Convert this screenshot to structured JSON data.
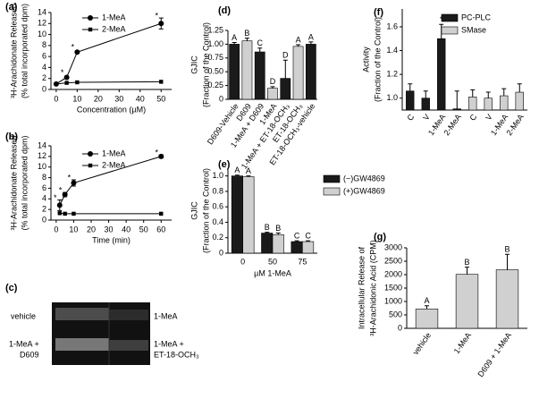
{
  "chart_data": [
    {
      "type": "line",
      "tag": "(a)",
      "ylabel": [
        "³H-Arachidonate Released",
        "(% total incorporated dpm)"
      ],
      "xlabel": "Concentration (µM)",
      "xlim": [
        -2.5,
        55
      ],
      "xticks": [
        0,
        10,
        20,
        30,
        40,
        50
      ],
      "ylim": [
        0,
        14
      ],
      "yticks": [
        0,
        2,
        4,
        6,
        8,
        10,
        12,
        14
      ],
      "legend": "upper center",
      "series": [
        {
          "name": "1-MeA",
          "marker": "circle",
          "color": "#000000",
          "x": [
            0,
            5,
            10,
            50
          ],
          "values": [
            1.0,
            2.2,
            6.8,
            12.0
          ],
          "errors": [
            null,
            null,
            null,
            1.0
          ],
          "point_labels": [
            null,
            "*",
            "*",
            "*"
          ]
        },
        {
          "name": "2-MeA",
          "marker": "square",
          "color": "#000000",
          "x": [
            0,
            5,
            10,
            50
          ],
          "values": [
            1.0,
            1.2,
            1.3,
            1.4
          ]
        }
      ]
    },
    {
      "type": "line",
      "tag": "(b)",
      "ylabel": [
        "³H-Arachidonate Released",
        "(% total incorporated dpm)"
      ],
      "xlabel": "Time (min)",
      "xlim": [
        -3,
        66
      ],
      "xticks": [
        0,
        10,
        20,
        30,
        40,
        50,
        60
      ],
      "ylim": [
        0,
        14
      ],
      "yticks": [
        0,
        2,
        4,
        6,
        8,
        10,
        12,
        14
      ],
      "legend": "upper center",
      "series": [
        {
          "name": "1-MeA",
          "marker": "circle",
          "color": "#000000",
          "x": [
            2,
            5,
            10,
            60
          ],
          "values": [
            2.8,
            4.8,
            7.0,
            12.0
          ],
          "errors": [
            1.0,
            0.4,
            0.6,
            0.3
          ],
          "point_labels": [
            "*",
            "*",
            "*",
            "*"
          ]
        },
        {
          "name": "2-MeA",
          "marker": "square",
          "color": "#000000",
          "x": [
            2,
            5,
            10,
            60
          ],
          "values": [
            1.3,
            1.2,
            1.2,
            1.2
          ]
        }
      ]
    },
    {
      "type": "bar",
      "tag": "(d)",
      "ylabel": [
        "GJIC",
        "(Fraction of the Control)"
      ],
      "categories": [
        "D609-Vehicle",
        "D609",
        "1-MeA + D609",
        "1-MeA",
        "1-MeA + ET-18-OCH₃",
        "ET-18-OCH₃",
        "ET-18-OCH₃-vehicle"
      ],
      "values": [
        1.0,
        1.06,
        0.86,
        0.2,
        0.38,
        0.96,
        1.0
      ],
      "errors": [
        0.03,
        0.05,
        0.07,
        0.03,
        0.33,
        0.03,
        0.04
      ],
      "colors": [
        "#1a1a1a",
        "#d0d0d0",
        "#1a1a1a",
        "#d0d0d0",
        "#1a1a1a",
        "#d0d0d0",
        "#1a1a1a"
      ],
      "bar_labels": [
        "A",
        "B",
        "C",
        "D",
        "D",
        "A",
        "A"
      ],
      "ylim": [
        0,
        1.25
      ],
      "yticks": [
        0,
        0.25,
        {
          "value": 0.5,
          "label": "0.50"
        },
        0.75,
        {
          "value": 1,
          "label": "1.00"
        },
        1.25
      ]
    },
    {
      "type": "bar",
      "tag": "(e)",
      "ylabel": [
        "GJIC",
        "(Fraction of the Control)"
      ],
      "xlabel": "µM 1-MeA",
      "legend": "upper right",
      "categories": [
        "0",
        "50",
        "75"
      ],
      "series": [
        {
          "name": "(−)GW4869",
          "color": "#1a1a1a",
          "values": [
            1.0,
            0.26,
            0.15
          ],
          "errors": [
            0.01,
            0.01,
            0.01
          ],
          "bar_labels": [
            "A",
            "B",
            "C"
          ]
        },
        {
          "name": "(+)GW4869",
          "color": "#d0d0d0",
          "values": [
            0.99,
            0.24,
            0.15
          ],
          "errors": [
            0.01,
            0.02,
            0.01
          ],
          "bar_labels": [
            "A",
            "B",
            "C"
          ]
        }
      ],
      "ylim": [
        0,
        1.1
      ],
      "yticks": [
        0,
        0.2,
        0.4,
        0.6,
        0.8,
        {
          "value": 1,
          "label": "1.0"
        }
      ]
    },
    {
      "type": "bar",
      "tag": "(f)",
      "ylabel": [
        "Activity",
        "(Fraction of the Control)"
      ],
      "legend": "upper right",
      "categories": [
        "C",
        "V",
        "1-MeA",
        "2-MeA",
        "C",
        "V",
        "1-MeA",
        "2-MeA"
      ],
      "series": [
        {
          "name": "PC-PLC",
          "color": "#1a1a1a",
          "values": [
            1.06,
            1.0,
            1.5,
            0.91,
            null,
            null,
            null,
            null
          ],
          "errors": [
            0.06,
            0.06,
            0.12,
            0.15,
            null,
            null,
            null,
            null
          ],
          "bar_labels": [
            null,
            null,
            "*",
            null,
            null,
            null,
            null,
            null
          ]
        },
        {
          "name": "SMase",
          "color": "#d0d0d0",
          "values": [
            null,
            null,
            null,
            null,
            1.01,
            1.0,
            1.02,
            1.05
          ],
          "errors": [
            null,
            null,
            null,
            null,
            0.06,
            0.05,
            0.06,
            0.07
          ]
        }
      ],
      "ylim": [
        0.9,
        1.75
      ],
      "yticks": [
        {
          "value": 1,
          "label": "1.0"
        },
        1.2,
        1.4,
        1.6
      ]
    },
    {
      "type": "bar",
      "tag": "(g)",
      "ylabel": [
        "Intracellular Release of",
        "³H-Arachidonic Acid (CPM)"
      ],
      "categories": [
        "vehicle",
        "1-MeA",
        "D609 + 1-MeA"
      ],
      "values": [
        720,
        2010,
        2180
      ],
      "errors": [
        120,
        270,
        580
      ],
      "bar_labels": [
        "A",
        "B",
        "B"
      ],
      "color": "#d0d0d0",
      "ylim": [
        0,
        3000
      ],
      "yticks": [
        0,
        500,
        1000,
        1500,
        2000,
        2500,
        3000
      ]
    }
  ],
  "panel_c": {
    "tag": "(c)",
    "labels": [
      "vehicle",
      "1-MeA",
      "1-MeA +",
      "D609",
      "1-MeA +",
      "ET-18-OCH₃"
    ]
  }
}
